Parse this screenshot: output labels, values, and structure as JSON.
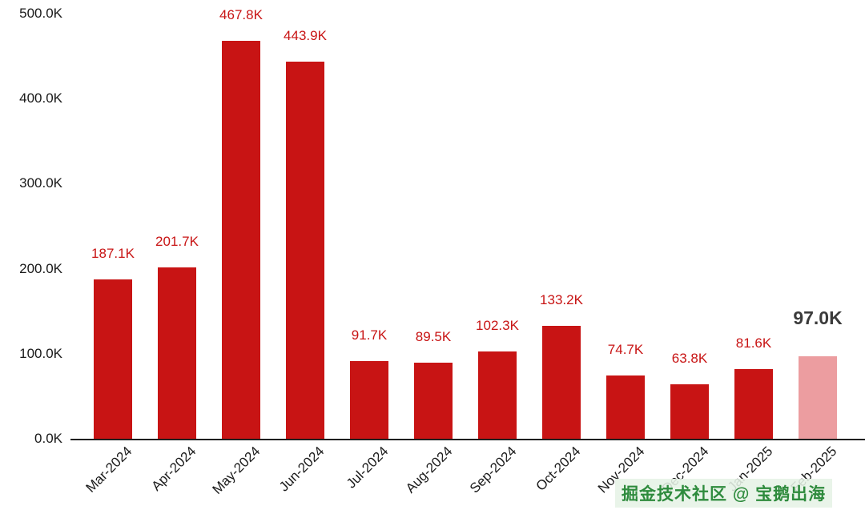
{
  "chart_data": {
    "type": "bar",
    "categories": [
      "Mar-2024",
      "Apr-2024",
      "May-2024",
      "Jun-2024",
      "Jul-2024",
      "Aug-2024",
      "Sep-2024",
      "Oct-2024",
      "Nov-2024",
      "Dec-2024",
      "Jan-2025",
      "Feb-2025"
    ],
    "values": [
      187.1,
      201.7,
      467.8,
      443.9,
      91.7,
      89.5,
      102.3,
      133.2,
      74.7,
      63.8,
      81.6,
      97.0
    ],
    "value_labels": [
      "187.1K",
      "201.7K",
      "467.8K",
      "443.9K",
      "91.7K",
      "89.5K",
      "102.3K",
      "133.2K",
      "74.7K",
      "63.8K",
      "81.6K",
      "97.0K"
    ],
    "title": "",
    "xlabel": "",
    "ylabel": "",
    "ylim": [
      0,
      500
    ],
    "ytick_labels": [
      "0.0K",
      "100.0K",
      "200.0K",
      "300.0K",
      "400.0K",
      "500.0K"
    ],
    "grid": false,
    "legend": "none",
    "bar_color": "#c81414",
    "highlight_bar_color": "#ec9da0",
    "value_label_color": "#c81414",
    "highlight_value_label_color": "#3b3b3b",
    "highlight_index": 11
  },
  "watermark": {
    "text": "掘金技术社区 @ 宝鹅出海"
  }
}
